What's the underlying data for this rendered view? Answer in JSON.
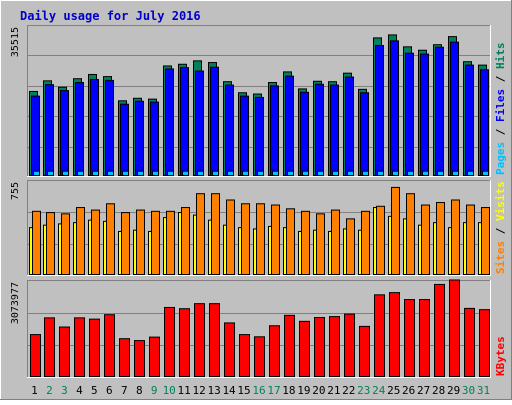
{
  "title": "Daily usage for July 2016",
  "colors": {
    "background": "#c0c0c0",
    "frame_light": "#ffffff",
    "frame_dark": "#808080",
    "title": "#0000cc",
    "hits": "#00805c",
    "files": "#0000ff",
    "pages": "#00c0ff",
    "visits": "#ffff00",
    "sites": "#ff8000",
    "kbytes": "#ff0000",
    "weekend_day": "#00805c",
    "weekday": "#000000",
    "gridline": "#808080"
  },
  "chart_data": [
    {
      "type": "bar",
      "panel": "hits-files-pages",
      "y_tick_label": "35515",
      "ylim": [
        0,
        35515
      ],
      "x": [
        1,
        2,
        3,
        4,
        5,
        6,
        7,
        8,
        9,
        10,
        11,
        12,
        13,
        14,
        15,
        16,
        17,
        18,
        19,
        20,
        21,
        22,
        23,
        24,
        25,
        26,
        27,
        28,
        29,
        30,
        31
      ],
      "series": [
        {
          "name": "Hits",
          "values": [
            20000,
            22500,
            21000,
            23000,
            24000,
            23500,
            17800,
            18400,
            18200,
            26000,
            26400,
            27200,
            26800,
            22300,
            19700,
            19400,
            22100,
            24600,
            20600,
            22400,
            22300,
            24300,
            20500,
            32600,
            33300,
            30500,
            29700,
            31000,
            32900,
            27000,
            26200
          ]
        },
        {
          "name": "Files",
          "values": [
            18900,
            21600,
            20200,
            22100,
            22800,
            22600,
            17000,
            17700,
            17500,
            25300,
            25600,
            24800,
            25700,
            21500,
            18900,
            18600,
            21300,
            23600,
            19800,
            21700,
            21500,
            23400,
            19700,
            30800,
            31900,
            29000,
            28800,
            30400,
            31600,
            26200,
            25100
          ]
        },
        {
          "name": "Pages",
          "values": [
            1100,
            1100,
            1100,
            1100,
            1100,
            1100,
            1100,
            1100,
            1100,
            1100,
            1100,
            1100,
            1100,
            1100,
            1100,
            1100,
            1100,
            1100,
            1100,
            1100,
            1100,
            1100,
            1100,
            1100,
            1100,
            1100,
            1100,
            1100,
            1100,
            1100,
            1100
          ]
        }
      ],
      "axis_labels": [
        {
          "text": "Pages",
          "series": "Pages"
        },
        {
          "text": "Files",
          "series": "Files"
        },
        {
          "text": "Hits",
          "series": "Hits"
        }
      ]
    },
    {
      "type": "bar",
      "panel": "sites-visits",
      "y_tick_label": "755",
      "ylim": [
        0,
        755
      ],
      "x": [
        1,
        2,
        3,
        4,
        5,
        6,
        7,
        8,
        9,
        10,
        11,
        12,
        13,
        14,
        15,
        16,
        17,
        18,
        19,
        20,
        21,
        22,
        23,
        24,
        25,
        26,
        27,
        28,
        29,
        30,
        31
      ],
      "series": [
        {
          "name": "Visits",
          "values": [
            380,
            400,
            410,
            420,
            440,
            430,
            350,
            360,
            350,
            460,
            500,
            480,
            440,
            400,
            380,
            370,
            390,
            380,
            350,
            360,
            350,
            370,
            360,
            540,
            470,
            450,
            400,
            420,
            380,
            420,
            420
          ]
        },
        {
          "name": "Sites",
          "values": [
            510,
            500,
            490,
            540,
            520,
            570,
            500,
            520,
            510,
            510,
            540,
            650,
            650,
            600,
            570,
            570,
            560,
            530,
            510,
            490,
            520,
            450,
            510,
            550,
            700,
            650,
            560,
            580,
            600,
            560,
            540
          ]
        }
      ],
      "axis_labels": [
        {
          "text": "Sites",
          "series": "Sites"
        },
        {
          "text": "Visits",
          "series": "Visits"
        }
      ]
    },
    {
      "type": "bar",
      "panel": "kbytes",
      "y_tick_label": "3073977",
      "ylim": [
        0,
        3073977
      ],
      "x": [
        1,
        2,
        3,
        4,
        5,
        6,
        7,
        8,
        9,
        10,
        11,
        12,
        13,
        14,
        15,
        16,
        17,
        18,
        19,
        20,
        21,
        22,
        23,
        24,
        25,
        26,
        27,
        28,
        29,
        30,
        31
      ],
      "series": [
        {
          "name": "KBytes",
          "values": [
            1360000,
            1890000,
            1600000,
            1890000,
            1850000,
            1990000,
            1230000,
            1170000,
            1280000,
            2220000,
            2180000,
            2340000,
            2340000,
            1730000,
            1360000,
            1290000,
            1640000,
            1970000,
            1780000,
            1900000,
            1930000,
            2010000,
            1620000,
            2620000,
            2690000,
            2470000,
            2470000,
            2950000,
            3090000,
            2190000,
            2150000
          ]
        }
      ],
      "axis_labels": [
        {
          "text": "KBytes",
          "series": "KBytes"
        }
      ]
    }
  ],
  "x_labels": [
    {
      "text": "1",
      "weekend": false
    },
    {
      "text": "2",
      "weekend": true
    },
    {
      "text": "3",
      "weekend": true
    },
    {
      "text": "4",
      "weekend": false
    },
    {
      "text": "5",
      "weekend": false
    },
    {
      "text": "6",
      "weekend": false
    },
    {
      "text": "7",
      "weekend": false
    },
    {
      "text": "8",
      "weekend": false
    },
    {
      "text": "9",
      "weekend": true
    },
    {
      "text": "10",
      "weekend": true
    },
    {
      "text": "11",
      "weekend": false
    },
    {
      "text": "12",
      "weekend": false
    },
    {
      "text": "13",
      "weekend": false
    },
    {
      "text": "14",
      "weekend": false
    },
    {
      "text": "15",
      "weekend": false
    },
    {
      "text": "16",
      "weekend": true
    },
    {
      "text": "17",
      "weekend": true
    },
    {
      "text": "18",
      "weekend": false
    },
    {
      "text": "19",
      "weekend": false
    },
    {
      "text": "20",
      "weekend": false
    },
    {
      "text": "21",
      "weekend": false
    },
    {
      "text": "22",
      "weekend": false
    },
    {
      "text": "23",
      "weekend": true
    },
    {
      "text": "24",
      "weekend": true
    },
    {
      "text": "25",
      "weekend": false
    },
    {
      "text": "26",
      "weekend": false
    },
    {
      "text": "27",
      "weekend": false
    },
    {
      "text": "28",
      "weekend": false
    },
    {
      "text": "29",
      "weekend": false
    },
    {
      "text": "30",
      "weekend": true
    },
    {
      "text": "31",
      "weekend": true
    }
  ]
}
